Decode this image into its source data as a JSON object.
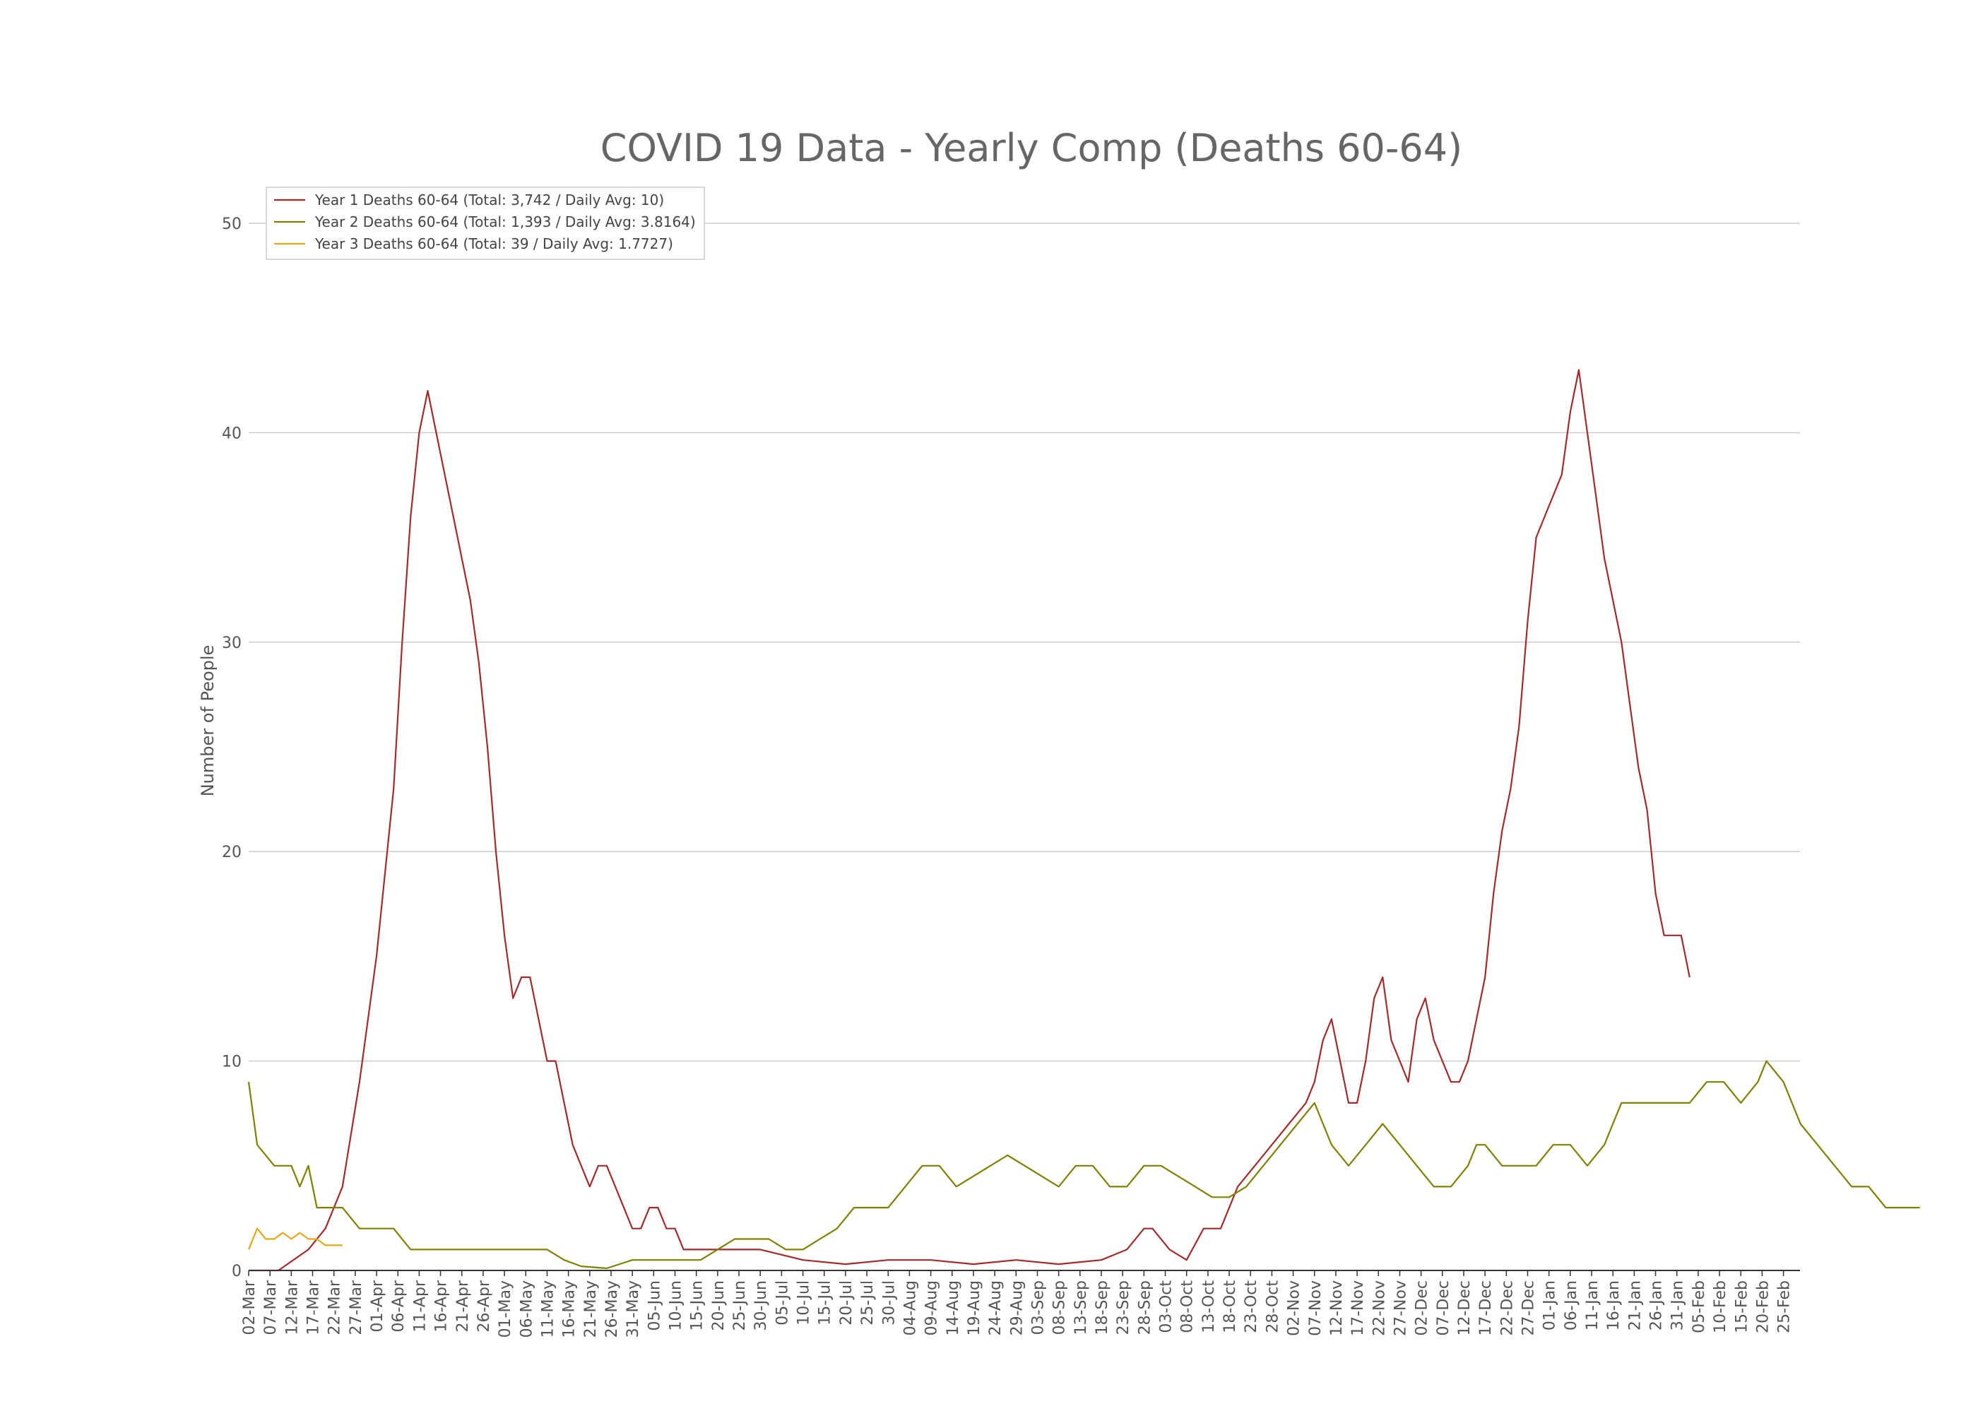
{
  "chart_data": {
    "type": "line",
    "title": "COVID 19 Data - Yearly Comp (Deaths 60-64)",
    "ylabel": "Number of People",
    "xlabel": "",
    "ylim": [
      0,
      50
    ],
    "yticks": [
      0,
      10,
      20,
      30,
      40,
      50
    ],
    "grid": "horizontal",
    "legend_position": "top-left",
    "x_ticks": [
      "02-Mar",
      "07-Mar",
      "12-Mar",
      "17-Mar",
      "22-Mar",
      "27-Mar",
      "01-Apr",
      "06-Apr",
      "11-Apr",
      "16-Apr",
      "21-Apr",
      "26-Apr",
      "01-May",
      "06-May",
      "11-May",
      "16-May",
      "21-May",
      "26-May",
      "31-May",
      "05-Jun",
      "10-Jun",
      "15-Jun",
      "20-Jun",
      "25-Jun",
      "30-Jun",
      "05-Jul",
      "10-Jul",
      "15-Jul",
      "20-Jul",
      "25-Jul",
      "30-Jul",
      "04-Aug",
      "09-Aug",
      "14-Aug",
      "19-Aug",
      "24-Aug",
      "29-Aug",
      "03-Sep",
      "08-Sep",
      "13-Sep",
      "18-Sep",
      "23-Sep",
      "28-Sep",
      "03-Oct",
      "08-Oct",
      "13-Oct",
      "18-Oct",
      "23-Oct",
      "28-Oct",
      "02-Nov",
      "07-Nov",
      "12-Nov",
      "17-Nov",
      "22-Nov",
      "27-Nov",
      "02-Dec",
      "07-Dec",
      "12-Dec",
      "17-Dec",
      "22-Dec",
      "27-Dec",
      "01-Jan",
      "06-Jan",
      "11-Jan",
      "16-Jan",
      "21-Jan",
      "26-Jan",
      "31-Jan",
      "05-Feb",
      "10-Feb",
      "15-Feb",
      "20-Feb",
      "25-Feb"
    ],
    "x_tick_step_days": 5,
    "series": [
      {
        "name": "Year 1 Deaths 60-64 (Total: 3,742 / Daily Avg: 10)",
        "color": "#a52a2a",
        "points": [
          [
            0,
            0
          ],
          [
            7,
            0
          ],
          [
            14,
            1
          ],
          [
            18,
            2
          ],
          [
            22,
            4
          ],
          [
            26,
            9
          ],
          [
            30,
            15
          ],
          [
            34,
            23
          ],
          [
            36,
            30
          ],
          [
            38,
            36
          ],
          [
            40,
            40
          ],
          [
            42,
            42
          ],
          [
            44,
            40
          ],
          [
            48,
            36
          ],
          [
            52,
            32
          ],
          [
            54,
            29
          ],
          [
            56,
            25
          ],
          [
            58,
            20
          ],
          [
            60,
            16
          ],
          [
            62,
            13
          ],
          [
            64,
            14
          ],
          [
            66,
            14
          ],
          [
            68,
            12
          ],
          [
            70,
            10
          ],
          [
            72,
            10
          ],
          [
            74,
            8
          ],
          [
            76,
            6
          ],
          [
            78,
            5
          ],
          [
            80,
            4
          ],
          [
            82,
            5
          ],
          [
            84,
            5
          ],
          [
            86,
            4
          ],
          [
            88,
            3
          ],
          [
            90,
            2
          ],
          [
            92,
            2
          ],
          [
            94,
            3
          ],
          [
            96,
            3
          ],
          [
            98,
            2
          ],
          [
            100,
            2
          ],
          [
            102,
            1
          ],
          [
            108,
            1
          ],
          [
            112,
            1
          ],
          [
            116,
            1
          ],
          [
            120,
            1
          ],
          [
            130,
            0.5
          ],
          [
            140,
            0.3
          ],
          [
            150,
            0.5
          ],
          [
            160,
            0.5
          ],
          [
            170,
            0.3
          ],
          [
            180,
            0.5
          ],
          [
            190,
            0.3
          ],
          [
            200,
            0.5
          ],
          [
            206,
            1
          ],
          [
            210,
            2
          ],
          [
            212,
            2
          ],
          [
            216,
            1
          ],
          [
            220,
            0.5
          ],
          [
            224,
            2
          ],
          [
            228,
            2
          ],
          [
            232,
            4
          ],
          [
            236,
            5
          ],
          [
            240,
            6
          ],
          [
            244,
            7
          ],
          [
            248,
            8
          ],
          [
            250,
            9
          ],
          [
            252,
            11
          ],
          [
            254,
            12
          ],
          [
            256,
            10
          ],
          [
            258,
            8
          ],
          [
            260,
            8
          ],
          [
            262,
            10
          ],
          [
            264,
            13
          ],
          [
            266,
            14
          ],
          [
            268,
            11
          ],
          [
            270,
            10
          ],
          [
            272,
            9
          ],
          [
            274,
            12
          ],
          [
            276,
            13
          ],
          [
            278,
            11
          ],
          [
            280,
            10
          ],
          [
            282,
            9
          ],
          [
            284,
            9
          ],
          [
            286,
            10
          ],
          [
            288,
            12
          ],
          [
            290,
            14
          ],
          [
            292,
            18
          ],
          [
            294,
            21
          ],
          [
            296,
            23
          ],
          [
            298,
            26
          ],
          [
            300,
            31
          ],
          [
            302,
            35
          ],
          [
            304,
            36
          ],
          [
            306,
            37
          ],
          [
            308,
            38
          ],
          [
            310,
            41
          ],
          [
            312,
            43
          ],
          [
            314,
            40
          ],
          [
            316,
            37
          ],
          [
            318,
            34
          ],
          [
            320,
            32
          ],
          [
            322,
            30
          ],
          [
            324,
            27
          ],
          [
            326,
            24
          ],
          [
            328,
            22
          ],
          [
            330,
            18
          ],
          [
            332,
            16
          ],
          [
            334,
            16
          ],
          [
            336,
            16
          ],
          [
            338,
            14
          ]
        ]
      },
      {
        "name": "Year 2 Deaths 60-64 (Total: 1,393 / Daily Avg: 3.8164)",
        "color": "#808000",
        "points": [
          [
            0,
            9
          ],
          [
            2,
            6
          ],
          [
            6,
            5
          ],
          [
            10,
            5
          ],
          [
            12,
            4
          ],
          [
            14,
            5
          ],
          [
            16,
            3
          ],
          [
            18,
            3
          ],
          [
            22,
            3
          ],
          [
            26,
            2
          ],
          [
            30,
            2
          ],
          [
            34,
            2
          ],
          [
            38,
            1
          ],
          [
            42,
            1
          ],
          [
            46,
            1
          ],
          [
            50,
            1
          ],
          [
            54,
            1
          ],
          [
            58,
            1
          ],
          [
            62,
            1
          ],
          [
            66,
            1
          ],
          [
            70,
            1
          ],
          [
            74,
            0.5
          ],
          [
            78,
            0.2
          ],
          [
            84,
            0.1
          ],
          [
            90,
            0.5
          ],
          [
            96,
            0.5
          ],
          [
            100,
            0.5
          ],
          [
            106,
            0.5
          ],
          [
            110,
            1
          ],
          [
            114,
            1.5
          ],
          [
            118,
            1.5
          ],
          [
            122,
            1.5
          ],
          [
            126,
            1
          ],
          [
            130,
            1
          ],
          [
            134,
            1.5
          ],
          [
            138,
            2
          ],
          [
            142,
            3
          ],
          [
            146,
            3
          ],
          [
            150,
            3
          ],
          [
            154,
            4
          ],
          [
            158,
            5
          ],
          [
            162,
            5
          ],
          [
            166,
            4
          ],
          [
            170,
            4.5
          ],
          [
            174,
            5
          ],
          [
            178,
            5.5
          ],
          [
            182,
            5
          ],
          [
            186,
            4.5
          ],
          [
            190,
            4
          ],
          [
            194,
            5
          ],
          [
            198,
            5
          ],
          [
            202,
            4
          ],
          [
            206,
            4
          ],
          [
            210,
            5
          ],
          [
            214,
            5
          ],
          [
            218,
            4.5
          ],
          [
            222,
            4
          ],
          [
            226,
            3.5
          ],
          [
            230,
            3.5
          ],
          [
            234,
            4
          ],
          [
            238,
            5
          ],
          [
            242,
            6
          ],
          [
            246,
            7
          ],
          [
            250,
            8
          ],
          [
            252,
            7
          ],
          [
            254,
            6
          ],
          [
            258,
            5
          ],
          [
            262,
            6
          ],
          [
            266,
            7
          ],
          [
            270,
            6
          ],
          [
            274,
            5
          ],
          [
            278,
            4
          ],
          [
            282,
            4
          ],
          [
            286,
            5
          ],
          [
            288,
            6
          ],
          [
            290,
            6
          ],
          [
            294,
            5
          ],
          [
            298,
            5
          ],
          [
            302,
            5
          ],
          [
            306,
            6
          ],
          [
            310,
            6
          ],
          [
            314,
            5
          ],
          [
            318,
            6
          ],
          [
            320,
            7
          ],
          [
            322,
            8
          ],
          [
            326,
            8
          ],
          [
            330,
            8
          ],
          [
            334,
            8
          ],
          [
            338,
            8
          ],
          [
            342,
            9
          ],
          [
            346,
            9
          ],
          [
            350,
            8
          ],
          [
            354,
            9
          ],
          [
            356,
            10
          ],
          [
            360,
            9
          ],
          [
            362,
            8
          ],
          [
            364,
            7
          ],
          [
            368,
            6
          ],
          [
            372,
            5
          ],
          [
            376,
            4
          ],
          [
            380,
            4
          ],
          [
            384,
            3
          ],
          [
            388,
            3
          ],
          [
            392,
            3
          ]
        ]
      },
      {
        "name": "Year 3 Deaths 60-64 (Total: 39 / Daily Avg: 1.7727)",
        "color": "#e6a817",
        "points": [
          [
            0,
            1
          ],
          [
            2,
            2
          ],
          [
            4,
            1.5
          ],
          [
            6,
            1.5
          ],
          [
            8,
            1.8
          ],
          [
            10,
            1.5
          ],
          [
            12,
            1.8
          ],
          [
            14,
            1.5
          ],
          [
            16,
            1.5
          ],
          [
            18,
            1.2
          ],
          [
            20,
            1.2
          ],
          [
            22,
            1.2
          ]
        ]
      }
    ]
  }
}
